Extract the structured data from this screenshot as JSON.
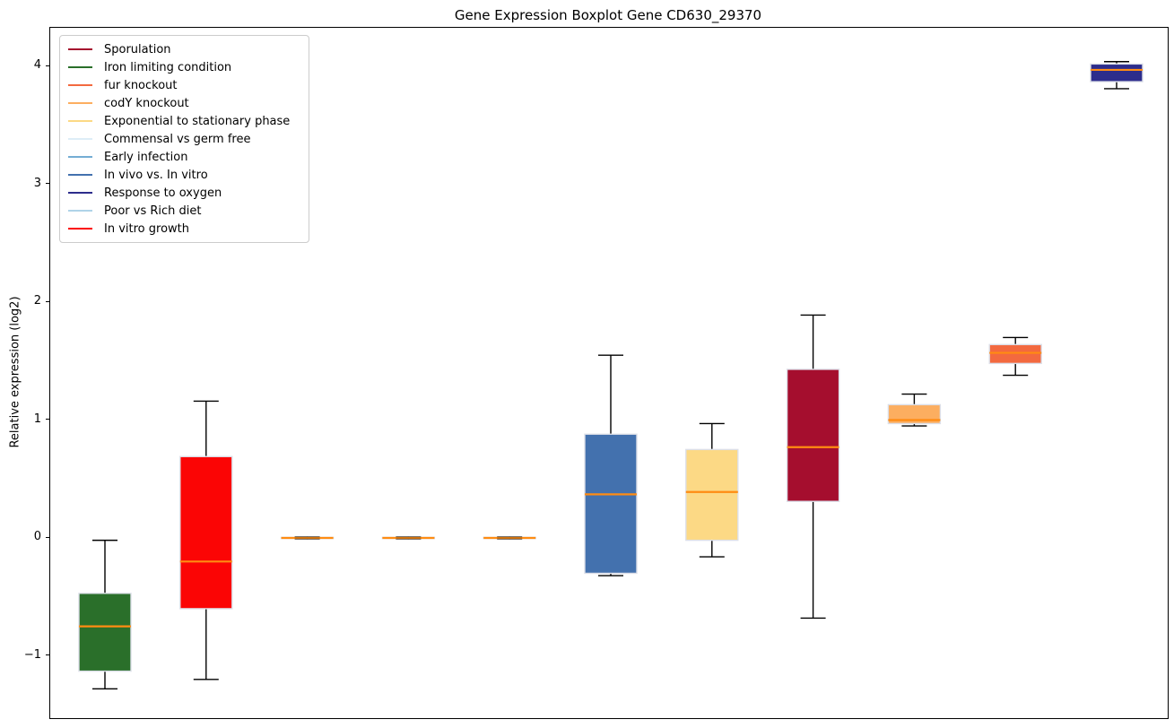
{
  "chart_data": {
    "type": "boxplot",
    "title": "Gene Expression Boxplot Gene CD630_29370",
    "ylabel": "Relative expression (log2)",
    "xlabel": "",
    "ylim": [
      -1.53,
      4.33
    ],
    "grid": false,
    "legend_position": "upper left",
    "x_tick_labels": [],
    "yticks": [
      {
        "value": 4,
        "label": "4"
      },
      {
        "value": 3,
        "label": "3"
      },
      {
        "value": 2,
        "label": "2"
      },
      {
        "value": 1,
        "label": "1"
      },
      {
        "value": 0,
        "label": "0"
      },
      {
        "value": -1,
        "label": "−1"
      }
    ],
    "legend": [
      {
        "label": "Sporulation",
        "color": "#a50e2e"
      },
      {
        "label": "Iron limiting condition",
        "color": "#2a6f2a"
      },
      {
        "label": "fur knockout",
        "color": "#f3693f"
      },
      {
        "label": "codY knockout",
        "color": "#fcae60"
      },
      {
        "label": "Exponential to stationary phase",
        "color": "#fcd985"
      },
      {
        "label": "Commensal vs germ free",
        "color": "#ddedf7"
      },
      {
        "label": "Early infection",
        "color": "#74add4"
      },
      {
        "label": "In vivo vs. In vitro",
        "color": "#4371ae"
      },
      {
        "label": "Response to oxygen",
        "color": "#2d2d8c"
      },
      {
        "label": "Poor vs Rich diet",
        "color": "#afd3e8"
      },
      {
        "label": "In vitro growth",
        "color": "#fb0505"
      }
    ],
    "style": {
      "median_color": "#ff8c12",
      "whisker_color": "#000000",
      "box_edge_color": "#dcdfe8"
    },
    "series": [
      {
        "condition": "Iron limiting condition",
        "color": "#2a6f2a",
        "whisker_low": -1.28,
        "q1": -1.13,
        "median": -0.75,
        "q3": -0.47,
        "whisker_high": -0.02
      },
      {
        "condition": "In vitro growth",
        "color": "#fb0505",
        "whisker_low": -1.2,
        "q1": -0.6,
        "median": -0.2,
        "q3": 0.69,
        "whisker_high": 1.16
      },
      {
        "condition": "Commensal vs germ free",
        "color": "#ddedf7",
        "whisker_low": -0.01,
        "q1": -0.005,
        "median": 0.0,
        "q3": 0.005,
        "whisker_high": 0.01
      },
      {
        "condition": "Early infection",
        "color": "#74add4",
        "whisker_low": -0.01,
        "q1": -0.005,
        "median": 0.0,
        "q3": 0.005,
        "whisker_high": 0.01
      },
      {
        "condition": "Poor vs Rich diet",
        "color": "#afd3e8",
        "whisker_low": -0.01,
        "q1": -0.005,
        "median": 0.0,
        "q3": 0.005,
        "whisker_high": 0.01
      },
      {
        "condition": "In vivo vs. In vitro",
        "color": "#4371ae",
        "whisker_low": -0.32,
        "q1": -0.3,
        "median": 0.37,
        "q3": 0.88,
        "whisker_high": 1.55
      },
      {
        "condition": "Exponential to stationary phase",
        "color": "#fcd985",
        "whisker_low": -0.16,
        "q1": -0.02,
        "median": 0.39,
        "q3": 0.75,
        "whisker_high": 0.97
      },
      {
        "condition": "Sporulation",
        "color": "#a50e2e",
        "whisker_low": -0.68,
        "q1": 0.31,
        "median": 0.77,
        "q3": 1.43,
        "whisker_high": 1.89
      },
      {
        "condition": "codY knockout",
        "color": "#fcae60",
        "whisker_low": 0.95,
        "q1": 0.97,
        "median": 1.0,
        "q3": 1.13,
        "whisker_high": 1.22
      },
      {
        "condition": "fur knockout",
        "color": "#f3693f",
        "whisker_low": 1.38,
        "q1": 1.48,
        "median": 1.57,
        "q3": 1.64,
        "whisker_high": 1.7
      },
      {
        "condition": "Response to oxygen",
        "color": "#2d2d8c",
        "whisker_low": 3.81,
        "q1": 3.87,
        "median": 3.97,
        "q3": 4.02,
        "whisker_high": 4.04
      }
    ]
  }
}
